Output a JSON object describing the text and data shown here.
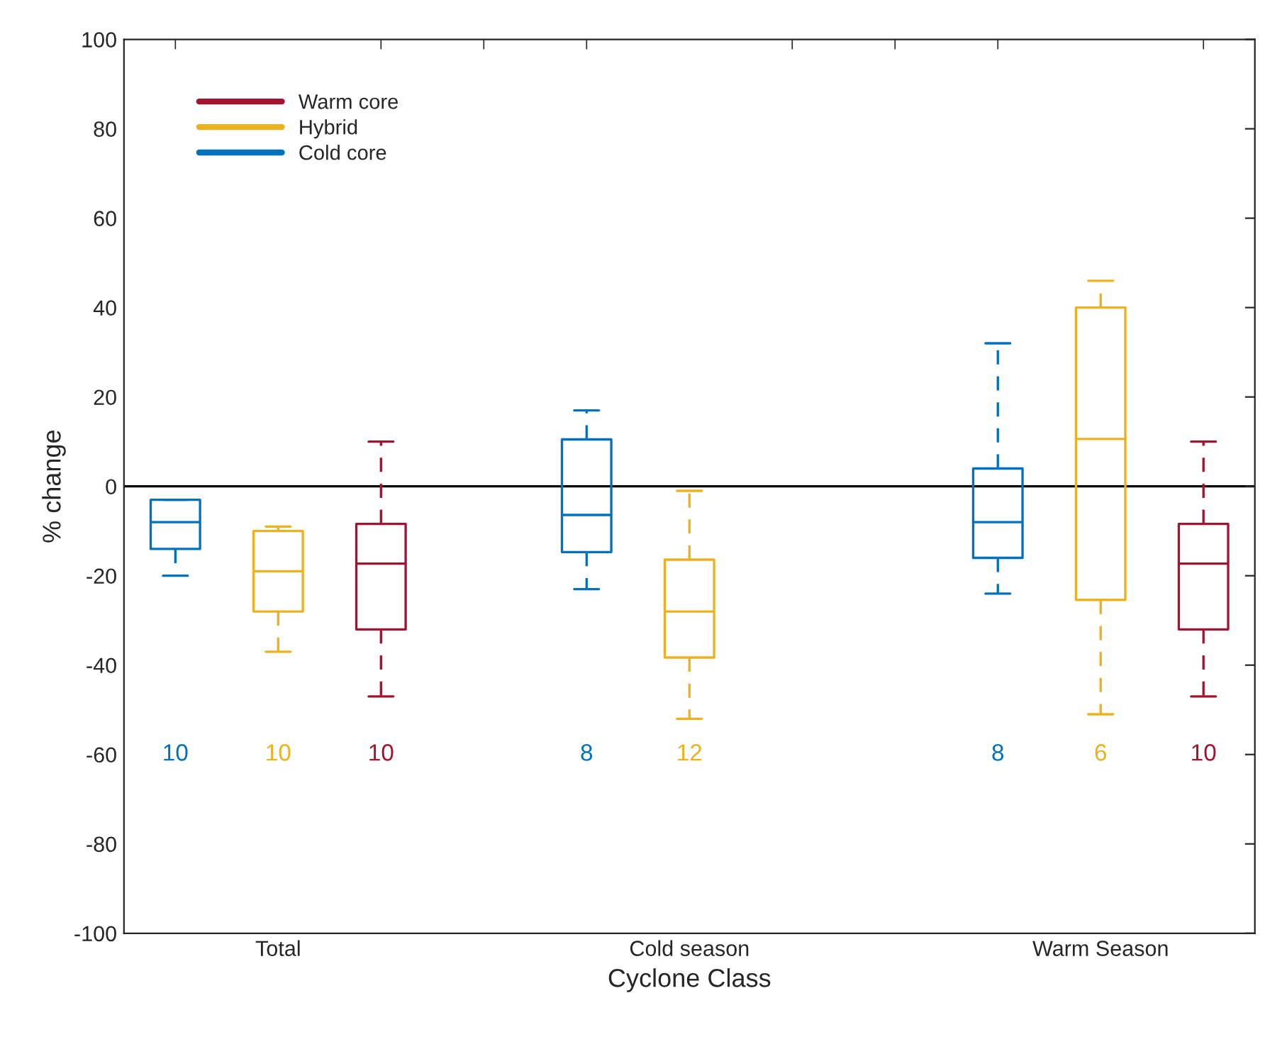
{
  "chart_data": {
    "type": "box",
    "xlabel": "Cyclone Class",
    "ylabel": "% change",
    "categories": [
      "Total",
      "Cold season",
      "Warm Season"
    ],
    "ylim": [
      -100,
      100
    ],
    "yticks": [
      -100,
      -80,
      -60,
      -40,
      -20,
      0,
      20,
      40,
      60,
      80,
      100
    ],
    "legend": "top left",
    "grid": false,
    "line_style": "dashed",
    "ref_lines": [
      {
        "axis": "y",
        "value": 0,
        "color": "#000000"
      }
    ],
    "series": [
      {
        "name": "Cold core",
        "color": "#0072bd",
        "value_labels": [
          "10",
          "8",
          "8"
        ],
        "boxes": [
          {
            "low": -20,
            "q1": -14,
            "median": -8,
            "q3": -3,
            "high": -3
          },
          {
            "low": -23,
            "q1": -14.7,
            "median": -6.4,
            "q3": 10.5,
            "high": 17
          },
          {
            "low": -24,
            "q1": -16,
            "median": -8,
            "q3": 4,
            "high": 32
          }
        ]
      },
      {
        "name": "Hybrid",
        "color": "#edb120",
        "value_labels": [
          "10",
          "12",
          "6"
        ],
        "boxes": [
          {
            "low": -37,
            "q1": -28,
            "median": -19,
            "q3": -10,
            "high": -9
          },
          {
            "low": -52,
            "q1": -38.3,
            "median": -28,
            "q3": -16.4,
            "high": -1
          },
          {
            "low": -51,
            "q1": -25.4,
            "median": 10.6,
            "q3": 40,
            "high": 46
          }
        ]
      },
      {
        "name": "Warm core",
        "color": "#a2142f",
        "value_labels": [
          "10",
          null,
          "10"
        ],
        "boxes": [
          {
            "low": -47,
            "q1": -32,
            "median": -17.3,
            "q3": -8.4,
            "high": 10
          },
          null,
          {
            "low": -47,
            "q1": -32,
            "median": -17.3,
            "q3": -8.4,
            "high": 10
          }
        ]
      }
    ]
  }
}
